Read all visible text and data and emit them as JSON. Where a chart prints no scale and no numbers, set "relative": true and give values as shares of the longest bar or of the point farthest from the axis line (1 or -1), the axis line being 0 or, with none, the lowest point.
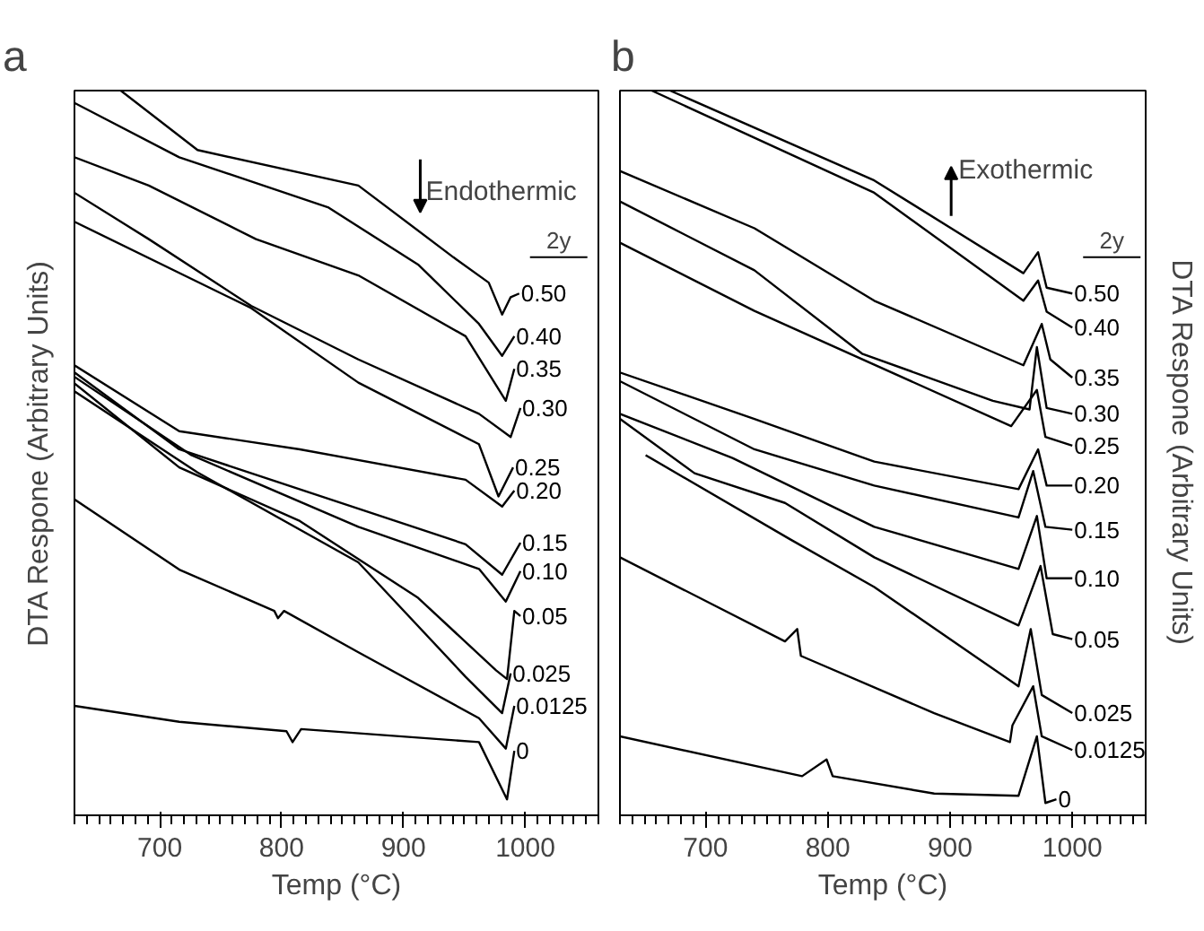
{
  "chart_data": [
    {
      "type": "line",
      "title": "a",
      "xlabel": "Temp (°C)",
      "ylabel": "DTA Respone (Arbitrary Units)",
      "legend_title": "2y",
      "relative": true,
      "xlim": [
        630,
        1060
      ],
      "xticks": [
        700,
        800,
        900,
        1000
      ],
      "grid": false,
      "legend": "right",
      "annotations": [
        "Endothermic"
      ],
      "series": [
        {
          "name": "0.50",
          "color": "#000000",
          "x": [
            668,
            731,
            863,
            941,
            970,
            981,
            988,
            995
          ],
          "values": [
            1.0,
            0.918,
            0.869,
            0.77,
            0.735,
            0.691,
            0.715,
            0.72
          ]
        },
        {
          "name": "0.40",
          "color": "#000000",
          "x": [
            630,
            716,
            838,
            912,
            962,
            981,
            991
          ],
          "values": [
            0.983,
            0.908,
            0.839,
            0.76,
            0.678,
            0.634,
            0.661
          ]
        },
        {
          "name": "0.35",
          "color": "#000000",
          "x": [
            630,
            691,
            779,
            863,
            951,
            984,
            991
          ],
          "values": [
            0.908,
            0.869,
            0.795,
            0.745,
            0.661,
            0.572,
            0.616
          ]
        },
        {
          "name": "0.30",
          "color": "#000000",
          "x": [
            630,
            691,
            775,
            863,
            962,
            988,
            996
          ],
          "values": [
            0.859,
            0.795,
            0.703,
            0.629,
            0.554,
            0.522,
            0.562
          ]
        },
        {
          "name": "0.25",
          "color": "#000000",
          "x": [
            630,
            775,
            863,
            962,
            978,
            990
          ],
          "values": [
            0.819,
            0.7,
            0.597,
            0.512,
            0.44,
            0.48
          ]
        },
        {
          "name": "0.20",
          "color": "#000000",
          "x": [
            630,
            716,
            815,
            951,
            981,
            991
          ],
          "values": [
            0.621,
            0.53,
            0.505,
            0.463,
            0.426,
            0.448
          ]
        },
        {
          "name": "0.15",
          "color": "#000000",
          "x": [
            630,
            716,
            863,
            951,
            981,
            996
          ],
          "values": [
            0.611,
            0.505,
            0.423,
            0.374,
            0.332,
            0.376
          ]
        },
        {
          "name": "0.10",
          "color": "#000000",
          "x": [
            630,
            726,
            863,
            962,
            984,
            996
          ],
          "values": [
            0.605,
            0.497,
            0.398,
            0.34,
            0.295,
            0.337
          ]
        },
        {
          "name": "0.05",
          "color": "#000000",
          "x": [
            630,
            716,
            815,
            912,
            976,
            985,
            991,
            996
          ],
          "values": [
            0.596,
            0.48,
            0.406,
            0.3,
            0.2,
            0.188,
            0.282,
            0.275
          ]
        },
        {
          "name": "0.025",
          "color": "#000000",
          "x": [
            630,
            731,
            863,
            951,
            981,
            988
          ],
          "values": [
            0.585,
            0.473,
            0.349,
            0.191,
            0.141,
            0.196
          ]
        },
        {
          "name": "0.0125",
          "color": "#000000",
          "x": [
            630,
            716,
            794,
            797,
            802,
            863,
            962,
            984,
            991
          ],
          "values": [
            0.436,
            0.339,
            0.282,
            0.272,
            0.282,
            0.225,
            0.134,
            0.092,
            0.151
          ]
        },
        {
          "name": "0",
          "color": "#000000",
          "x": [
            630,
            716,
            804,
            809,
            816,
            962,
            985,
            991
          ],
          "values": [
            0.151,
            0.129,
            0.116,
            0.101,
            0.119,
            0.101,
            0.022,
            0.089
          ]
        }
      ]
    },
    {
      "type": "line",
      "title": "b",
      "xlabel": "Temp (°C)",
      "ylabel": "DTA Respone (Arbitrary Units)",
      "legend_title": "2y",
      "relative": true,
      "xlim": [
        630,
        1060
      ],
      "xticks": [
        700,
        800,
        900,
        1000
      ],
      "grid": false,
      "legend": "right",
      "annotations": [
        "Exothermic"
      ],
      "series": [
        {
          "name": "0.50",
          "color": "#000000",
          "x": [
            671,
            838,
            960,
            972,
            979,
            1000
          ],
          "values": [
            1.0,
            0.876,
            0.748,
            0.777,
            0.728,
            0.72
          ]
        },
        {
          "name": "0.40",
          "color": "#000000",
          "x": [
            656,
            838,
            960,
            972,
            979,
            1000
          ],
          "values": [
            1.0,
            0.859,
            0.71,
            0.738,
            0.695,
            0.673
          ]
        },
        {
          "name": "0.35",
          "color": "#000000",
          "x": [
            630,
            740,
            838,
            960,
            975,
            982,
            1000
          ],
          "values": [
            0.889,
            0.81,
            0.71,
            0.621,
            0.678,
            0.629,
            0.604
          ]
        },
        {
          "name": "0.30",
          "color": "#000000",
          "x": [
            630,
            740,
            828,
            935,
            965,
            971,
            979,
            1000
          ],
          "values": [
            0.847,
            0.752,
            0.637,
            0.572,
            0.56,
            0.646,
            0.562,
            0.554
          ]
        },
        {
          "name": "0.25",
          "color": "#000000",
          "x": [
            630,
            740,
            950,
            971,
            978,
            1000
          ],
          "values": [
            0.79,
            0.696,
            0.537,
            0.587,
            0.522,
            0.51
          ]
        },
        {
          "name": "0.20",
          "color": "#000000",
          "x": [
            630,
            740,
            838,
            956,
            972,
            979,
            1000
          ],
          "values": [
            0.611,
            0.547,
            0.488,
            0.45,
            0.505,
            0.455,
            0.455
          ]
        },
        {
          "name": "0.15",
          "color": "#000000",
          "x": [
            630,
            740,
            838,
            956,
            968,
            978,
            1000
          ],
          "values": [
            0.599,
            0.505,
            0.455,
            0.411,
            0.475,
            0.398,
            0.394
          ]
        },
        {
          "name": "0.10",
          "color": "#000000",
          "x": [
            630,
            722,
            838,
            956,
            971,
            979,
            1000
          ],
          "values": [
            0.554,
            0.493,
            0.398,
            0.34,
            0.413,
            0.327,
            0.327
          ]
        },
        {
          "name": "0.05",
          "color": "#000000",
          "x": [
            630,
            691,
            765,
            838,
            956,
            974,
            984,
            1000
          ],
          "values": [
            0.547,
            0.472,
            0.431,
            0.356,
            0.262,
            0.344,
            0.25,
            0.243
          ]
        },
        {
          "name": "0.025",
          "color": "#000000",
          "x": [
            651,
            769,
            838,
            956,
            966,
            975,
            1000
          ],
          "values": [
            0.497,
            0.381,
            0.315,
            0.178,
            0.257,
            0.166,
            0.141
          ]
        },
        {
          "name": "0.0125",
          "color": "#000000",
          "x": [
            630,
            765,
            775,
            778,
            887,
            949,
            951,
            968,
            975,
            1000
          ],
          "values": [
            0.356,
            0.24,
            0.257,
            0.22,
            0.141,
            0.101,
            0.124,
            0.178,
            0.109,
            0.09
          ]
        },
        {
          "name": "0",
          "color": "#000000",
          "x": [
            630,
            779,
            799,
            804,
            887,
            956,
            971,
            978,
            987
          ],
          "values": [
            0.109,
            0.054,
            0.077,
            0.054,
            0.03,
            0.027,
            0.109,
            0.017,
            0.022
          ]
        }
      ]
    }
  ]
}
